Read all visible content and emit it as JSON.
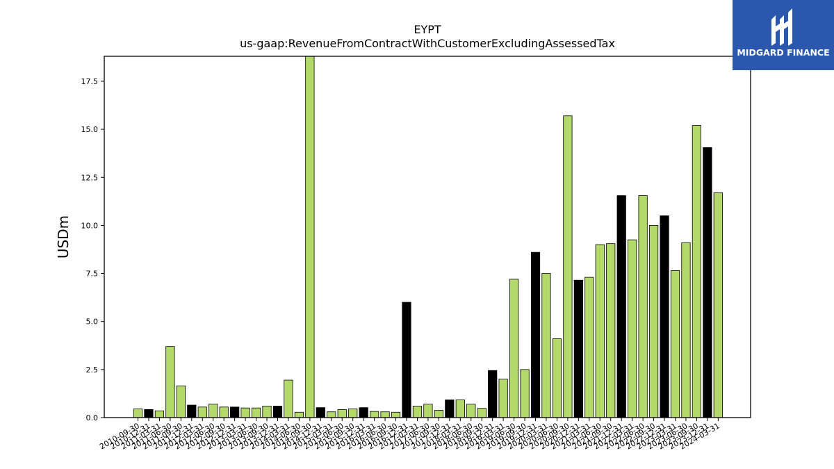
{
  "logo": {
    "text": "MIDGARD FINANCE",
    "icon": "midgard-logo-icon",
    "bg_color": "#2b57ad"
  },
  "colors": {
    "bar_green": "#b2d96a",
    "bar_black": "#000000",
    "bar_edge": "#000000"
  },
  "chart_data": {
    "type": "bar",
    "title": "EYPT",
    "subtitle": "us-gaap:RevenueFromContractWithCustomerExcludingAssessedTax",
    "ylabel": "USDm",
    "xlabel": "",
    "ylim": [
      0,
      18.8
    ],
    "yticks": [
      0.0,
      2.5,
      5.0,
      7.5,
      10.0,
      12.5,
      15.0,
      17.5
    ],
    "ytick_labels": [
      "0.0",
      "2.5",
      "5.0",
      "7.5",
      "10.0",
      "12.5",
      "15.0",
      "17.5"
    ],
    "grid": false,
    "categories": [
      "2010-09-30",
      "2010-12-31",
      "2011-03-31",
      "2011-06-30",
      "2011-09-30",
      "2011-12-31",
      "2012-03-31",
      "2012-06-30",
      "2012-09-30",
      "2012-12-31",
      "2013-03-31",
      "2013-06-30",
      "2013-09-30",
      "2013-12-31",
      "2014-03-31",
      "2014-06-30",
      "2014-09-30",
      "2014-12-31",
      "2015-03-31",
      "2015-06-30",
      "2015-09-30",
      "2015-12-31",
      "2016-03-31",
      "2016-06-30",
      "2016-09-30",
      "2016-12-31",
      "2017-03-31",
      "2017-06-30",
      "2017-09-30",
      "2017-12-31",
      "2018-03-31",
      "2018-06-30",
      "2018-09-30",
      "2018-12-31",
      "2019-03-31",
      "2019-06-30",
      "2019-09-30",
      "2019-12-31",
      "2020-03-31",
      "2020-06-30",
      "2020-09-30",
      "2020-12-31",
      "2021-03-31",
      "2021-06-30",
      "2021-09-30",
      "2021-12-31",
      "2022-03-31",
      "2022-06-30",
      "2022-09-30",
      "2022-12-31",
      "2023-03-31",
      "2023-06-30",
      "2023-09-30",
      "2023-12-31",
      "2024-03-31"
    ],
    "values": [
      0.45,
      0.42,
      0.35,
      3.7,
      1.65,
      0.65,
      0.55,
      0.7,
      0.55,
      0.55,
      0.5,
      0.5,
      0.6,
      0.6,
      1.95,
      0.28,
      18.8,
      0.52,
      0.3,
      0.42,
      0.45,
      0.52,
      0.32,
      0.3,
      0.28,
      6.0,
      0.6,
      0.7,
      0.38,
      0.92,
      0.92,
      0.7,
      0.48,
      2.45,
      2.0,
      7.2,
      2.5,
      8.6,
      7.5,
      4.1,
      15.7,
      7.15,
      7.3,
      9.0,
      9.05,
      11.55,
      9.25,
      11.55,
      10.0,
      10.5,
      7.65,
      9.1,
      15.2,
      14.05,
      11.7
    ],
    "bar_colors": [
      "green",
      "black",
      "green",
      "green",
      "green",
      "black",
      "green",
      "green",
      "green",
      "black",
      "green",
      "green",
      "green",
      "black",
      "green",
      "green",
      "green",
      "black",
      "green",
      "green",
      "green",
      "black",
      "green",
      "green",
      "green",
      "black",
      "green",
      "green",
      "green",
      "black",
      "green",
      "green",
      "green",
      "black",
      "green",
      "green",
      "green",
      "black",
      "green",
      "green",
      "green",
      "black",
      "green",
      "green",
      "green",
      "black",
      "green",
      "green",
      "green",
      "black",
      "green",
      "green",
      "green",
      "black",
      "green"
    ]
  }
}
